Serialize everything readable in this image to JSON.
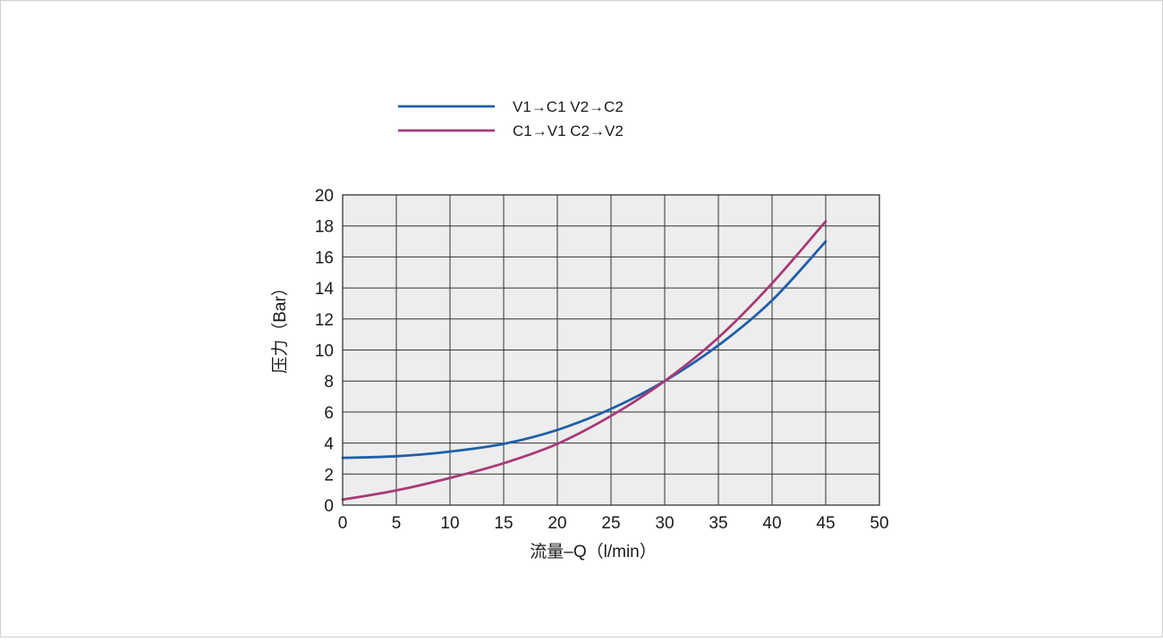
{
  "colors": {
    "plot_background": "#ededed",
    "grid": "#333333",
    "series_blue": "#1f5fa8",
    "series_magenta": "#a83a78"
  },
  "chart_data": {
    "type": "line",
    "xlabel": "流量–Q（l/min）",
    "ylabel": "压力（Bar）",
    "xlim": [
      0,
      50
    ],
    "ylim": [
      0,
      20
    ],
    "x_ticks": [
      "0",
      "5",
      "10",
      "15",
      "20",
      "25",
      "30",
      "35",
      "40",
      "45",
      "50"
    ],
    "y_ticks": [
      "0",
      "2",
      "4",
      "6",
      "8",
      "10",
      "12",
      "14",
      "16",
      "18",
      "20"
    ],
    "grid": true,
    "legend_position": "top-left",
    "series": [
      {
        "name": "V1→C1  V2→C2",
        "color": "#1f5fa8",
        "x": [
          0,
          5,
          10,
          15,
          20,
          25,
          30,
          35,
          40,
          45
        ],
        "y": [
          3.05,
          3.15,
          3.45,
          3.95,
          4.85,
          6.2,
          8.0,
          10.3,
          13.2,
          17.0
        ]
      },
      {
        "name": "C1→V1  C2→V2",
        "color": "#a83a78",
        "x": [
          0,
          5,
          10,
          15,
          20,
          25,
          30,
          35,
          40,
          45
        ],
        "y": [
          0.35,
          0.95,
          1.75,
          2.7,
          3.95,
          5.75,
          8.0,
          10.8,
          14.3,
          18.3
        ]
      }
    ]
  }
}
